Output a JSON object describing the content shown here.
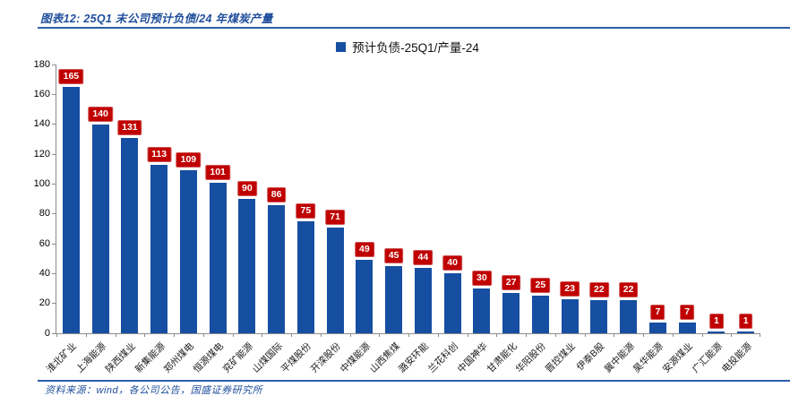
{
  "header": {
    "title": "图表12: 25Q1 末公司预计负债/24 年煤炭产量"
  },
  "legend": {
    "label": "预计负债-25Q1/产量-24",
    "swatch_color": "#164FA2"
  },
  "chart_data": {
    "type": "bar",
    "title": "预计负债-25Q1/产量-24",
    "categories": [
      "淮北矿业",
      "上海能源",
      "陕西煤业",
      "新集能源",
      "郑州煤电",
      "恒源煤电",
      "兖矿能源",
      "山煤国际",
      "平煤股份",
      "开滦股份",
      "中煤能源",
      "山西焦煤",
      "潞安环能",
      "兰花科创",
      "中国神华",
      "甘肃能化",
      "华阳股份",
      "晋控煤业",
      "伊泰B股",
      "冀中能源",
      "昊华能源",
      "安源煤业",
      "广汇能源",
      "电投能源"
    ],
    "values": [
      165,
      140,
      131,
      113,
      109,
      101,
      90,
      86,
      75,
      71,
      49,
      45,
      44,
      40,
      30,
      27,
      25,
      23,
      22,
      22,
      7,
      7,
      1,
      1
    ],
    "xlabel": "",
    "ylabel": "",
    "ylim": [
      0,
      180
    ],
    "ytick_step": 20,
    "grid": false,
    "legend_position": "top-center",
    "bar_color": "#164FA2",
    "value_label_bg": "#C00000",
    "value_label_color": "#FFFFFF"
  },
  "footer": {
    "source": "资料来源：wind，各公司公告，国盛证券研究所"
  },
  "colors": {
    "accent_blue": "#1F4E9C",
    "rule_blue": "#2B5FA8",
    "axis_gray": "#8c8c8c",
    "label_red": "#C00000"
  }
}
